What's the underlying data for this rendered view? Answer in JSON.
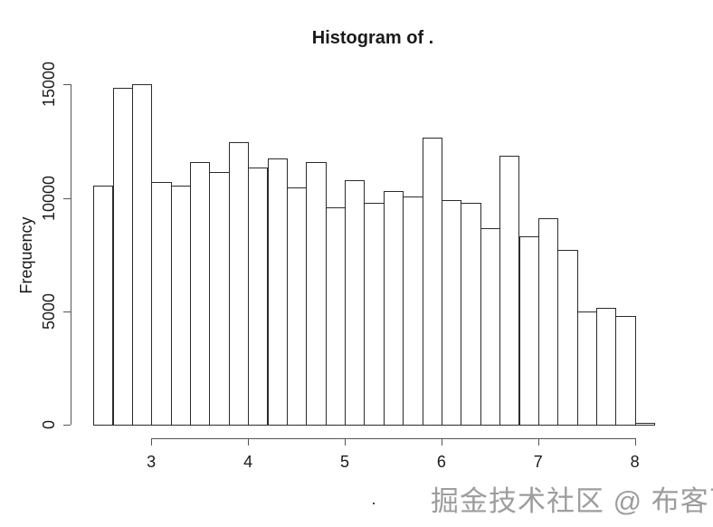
{
  "figure": {
    "watermark": "掘金技术社区 @ 布客飞龙"
  },
  "chart_data": {
    "type": "bar",
    "subtype": "histogram",
    "title": "Histogram of .",
    "xlabel": ".",
    "ylabel": "Frequency",
    "bin_edges": [
      2.4,
      2.6,
      2.8,
      3.0,
      3.2,
      3.4,
      3.6,
      3.8,
      4.0,
      4.2,
      4.4,
      4.6,
      4.8,
      5.0,
      5.2,
      5.4,
      5.6,
      5.8,
      6.0,
      6.2,
      6.4,
      6.6,
      6.8,
      7.0,
      7.2,
      7.4,
      7.6,
      7.8,
      8.0,
      8.2
    ],
    "values": [
      10550,
      14850,
      15000,
      10700,
      10550,
      11600,
      11150,
      12450,
      11350,
      11750,
      10450,
      11600,
      9600,
      10800,
      9800,
      10300,
      10050,
      12650,
      9900,
      9800,
      8650,
      11850,
      8300,
      9100,
      7700,
      5000,
      5150,
      4800,
      100
    ],
    "x_ticks": [
      3,
      4,
      5,
      6,
      7,
      8
    ],
    "y_ticks": [
      0,
      5000,
      10000,
      15000
    ],
    "xlim": [
      2.4,
      8.2
    ],
    "ylim": [
      0,
      15000
    ],
    "grid": false,
    "legend_position": "none",
    "bar_fill": "#ffffff",
    "bar_border": "#2b2b2b",
    "axis_color": "#555555",
    "text_color": "#1a1a1a"
  }
}
